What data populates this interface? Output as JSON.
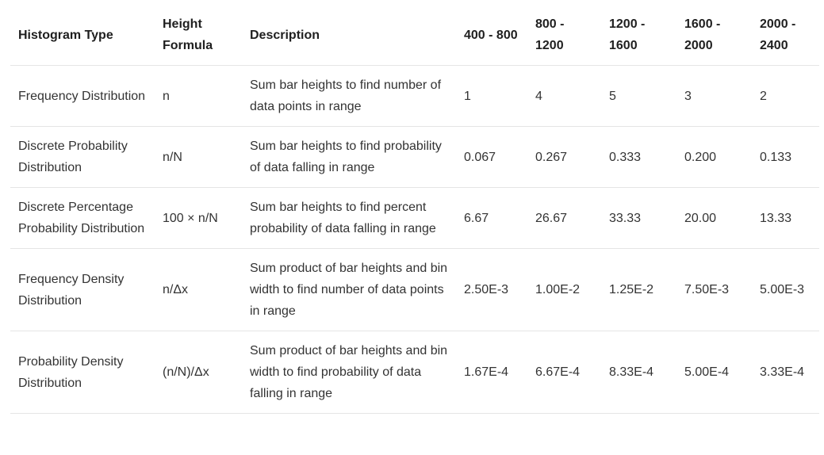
{
  "table": {
    "headers": [
      "Histogram Type",
      "Height Formula",
      "Description",
      "400 - 800",
      "800 - 1200",
      "1200 - 1600",
      "1600 - 2000",
      "2000 - 2400"
    ],
    "rows": [
      [
        "Frequency Distribution",
        "n",
        "Sum bar heights to find number of data points in range",
        "1",
        "4",
        "5",
        "3",
        "2"
      ],
      [
        "Discrete Probability Distribution",
        "n/N",
        "Sum bar heights to find probability of data falling in range",
        "0.067",
        "0.267",
        "0.333",
        "0.200",
        "0.133"
      ],
      [
        "Discrete Percentage Probability Distribution",
        "100 × n/N",
        "Sum bar heights to find percent probability of data falling in range",
        "6.67",
        "26.67",
        "33.33",
        "20.00",
        "13.33"
      ],
      [
        "Frequency Density Distribution",
        "n/Δx",
        "Sum product of bar heights and bin width to find number of data points in range",
        "2.50E-3",
        "1.00E-2",
        "1.25E-2",
        "7.50E-3",
        "5.00E-3"
      ],
      [
        "Probability Density Distribution",
        "(n/N)/Δx",
        "Sum product of bar heights and bin width to find probability of data falling in range",
        "1.67E-4",
        "6.67E-4",
        "8.33E-4",
        "5.00E-4",
        "3.33E-4"
      ]
    ]
  }
}
